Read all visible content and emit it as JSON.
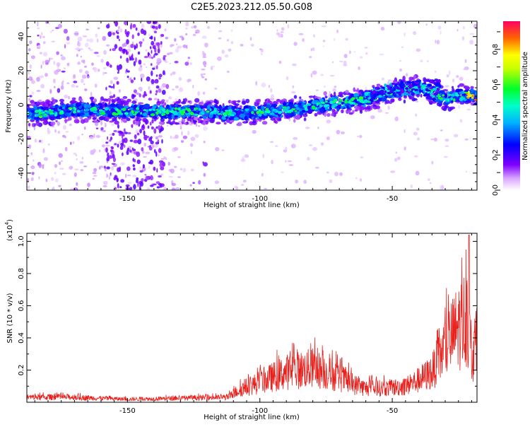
{
  "title": "C2E5.2023.212.05.50.G08",
  "chart_data": [
    {
      "type": "heatmap",
      "xlabel": "Height of straight line (km)",
      "ylabel": "Frequency (Hz)",
      "xlim": [
        -188,
        -18
      ],
      "ylim": [
        -50,
        49
      ],
      "xticks": [
        -150,
        -100,
        -50
      ],
      "yticks": [
        -40,
        -20,
        0,
        20,
        40
      ],
      "colorbar": {
        "label": "Normalized spectral amplitude",
        "range": [
          0,
          0.96
        ],
        "ticks": [
          "0.0",
          "0.2",
          "0.4",
          "0.6",
          "0.8"
        ],
        "stops": [
          "#ffffff",
          "#7f00ff",
          "#0000ff",
          "#00c8ff",
          "#00ff3c",
          "#ffff00",
          "#ff6400",
          "#ff0064"
        ]
      },
      "ridge": {
        "x": [
          -188,
          -180,
          -170,
          -160,
          -150,
          -140,
          -130,
          -120,
          -110,
          -100,
          -90,
          -80,
          -70,
          -60,
          -50,
          -40,
          -30,
          -20,
          -18
        ],
        "y": [
          -5,
          -5,
          -3,
          -3,
          -4,
          -4,
          -4,
          -4,
          -5,
          -4,
          -3,
          -1,
          1,
          3,
          8,
          10,
          4,
          6,
          3
        ],
        "upper_branch": {
          "x": [
            -60,
            -50,
            -40,
            -32
          ],
          "y": [
            5,
            10,
            11,
            12
          ]
        }
      },
      "noise_region": {
        "x": [
          -188,
          -120
        ]
      }
    },
    {
      "type": "line",
      "xlabel": "Height of straight line (km)",
      "ylabel": "SNR (10 * v/v)",
      "y_multiplier": "(x10",
      "y_multiplier_exp": "4",
      "y_multiplier_close": ")",
      "xlim": [
        -188,
        -18
      ],
      "ylim": [
        0,
        1.05
      ],
      "xticks": [
        -150,
        -100,
        -50
      ],
      "yticks": [
        "0.2",
        "0.4",
        "0.6",
        "0.8",
        "1.0"
      ],
      "line_color": "#e8211d",
      "envelope": {
        "x": [
          -188,
          -170,
          -150,
          -130,
          -112,
          -108,
          -100,
          -90,
          -80,
          -70,
          -65,
          -60,
          -52,
          -45,
          -40,
          -35,
          -30,
          -25,
          -22,
          -20,
          -18
        ],
        "y": [
          0.05,
          0.05,
          0.03,
          0.04,
          0.05,
          0.12,
          0.2,
          0.3,
          0.34,
          0.25,
          0.18,
          0.14,
          0.14,
          0.16,
          0.22,
          0.3,
          0.55,
          0.75,
          0.85,
          0.45,
          0.65
        ]
      }
    }
  ]
}
